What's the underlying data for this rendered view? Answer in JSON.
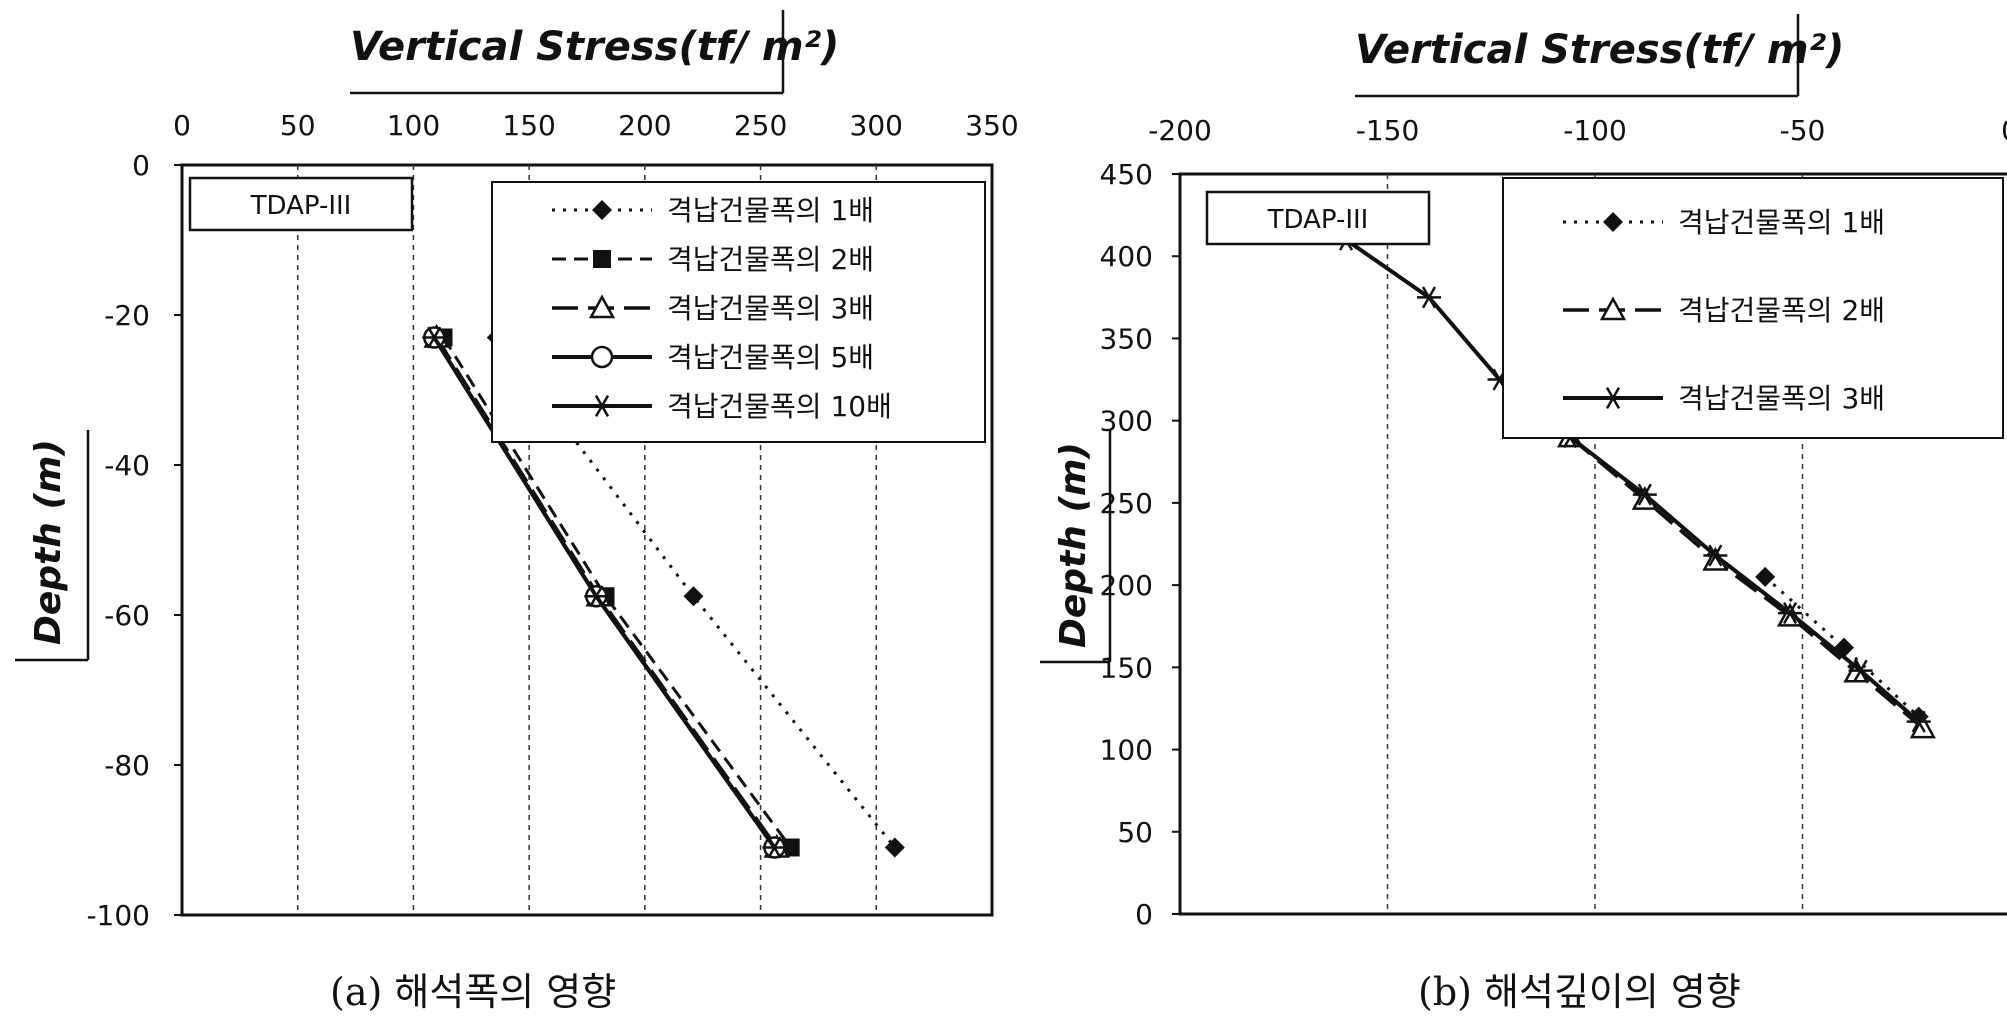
{
  "charts": [
    {
      "title": "Vertical Stress(tf/ m²)",
      "caption": "(a) 해석폭의 영향",
      "xlabel": "Depth (m)",
      "box_label": "TDAP-III",
      "x_ticks": [
        "0",
        "50",
        "100",
        "150",
        "200",
        "250",
        "300",
        "350"
      ],
      "y_ticks": [
        "0",
        "-20",
        "-40",
        "-60",
        "-80",
        "-100"
      ]
    },
    {
      "title": "Vertical Stress(tf/ m²)",
      "caption": "(b) 해석깊이의 영향",
      "xlabel": "Depth (m)",
      "box_label": "TDAP-III",
      "x_ticks": [
        "-200",
        "-150",
        "-100",
        "-50",
        "0"
      ],
      "y_ticks": [
        "450",
        "400",
        "350",
        "300",
        "250",
        "200",
        "150",
        "100",
        "50",
        "0"
      ]
    }
  ],
  "chart_data": [
    {
      "type": "line",
      "title": "Vertical Stress(tf/ m²)",
      "ylabel": "Depth (m)",
      "xlim": [
        0,
        350
      ],
      "ylim": [
        -100,
        0
      ],
      "grid": "vertical dashed",
      "legend_position": "top-right",
      "series": [
        {
          "name": "격납건물폭의 1배",
          "x": [
            136,
            221,
            308
          ],
          "y": [
            -23,
            -57.5,
            -91
          ],
          "marker": "diamond",
          "dash": "dotted",
          "color": "#111111"
        },
        {
          "name": "격납건물폭의 2배",
          "x": [
            113,
            183,
            263
          ],
          "y": [
            -23,
            -57.5,
            -91
          ],
          "marker": "square",
          "dash": "dashed",
          "color": "#111111"
        },
        {
          "name": "격납건물폭의 3배",
          "x": [
            110,
            180,
            257
          ],
          "y": [
            -23,
            -57.5,
            -91
          ],
          "marker": "triangle",
          "dash": "longdash",
          "color": "#111111"
        },
        {
          "name": "격납건물폭의 5배",
          "x": [
            109,
            179,
            256
          ],
          "y": [
            -23,
            -57.5,
            -91
          ],
          "marker": "circle",
          "dash": "solid",
          "color": "#111111"
        },
        {
          "name": "격납건물폭의 10배",
          "x": [
            109,
            179,
            256
          ],
          "y": [
            -23,
            -57.5,
            -91
          ],
          "marker": "asterisk",
          "dash": "solid",
          "color": "#111111"
        }
      ]
    },
    {
      "type": "line",
      "title": "Vertical Stress(tf/ m²)",
      "ylabel": "Depth (m)",
      "xlim": [
        -200,
        0
      ],
      "ylim": [
        0,
        450
      ],
      "grid": "vertical dashed",
      "legend_position": "top-right",
      "series": [
        {
          "name": "격납건물폭의 1배",
          "x": [
            -59,
            -40,
            -22
          ],
          "y": [
            205,
            162,
            120
          ],
          "marker": "diamond",
          "dash": "dotted",
          "color": "#111111"
        },
        {
          "name": "격납건물폭의 2배",
          "x": [
            -106,
            -88,
            -71,
            -53,
            -37,
            -21
          ],
          "y": [
            290,
            252,
            215,
            181,
            147,
            113
          ],
          "marker": "triangle",
          "dash": "longdash",
          "color": "#111111"
        },
        {
          "name": "격납건물폭의 3배",
          "x": [
            -160,
            -140,
            -123,
            -106,
            -88,
            -71,
            -53,
            -36,
            -22
          ],
          "y": [
            410,
            375,
            325,
            290,
            255,
            218,
            183,
            148,
            117
          ],
          "marker": "asterisk",
          "dash": "solid",
          "color": "#111111"
        }
      ]
    }
  ]
}
